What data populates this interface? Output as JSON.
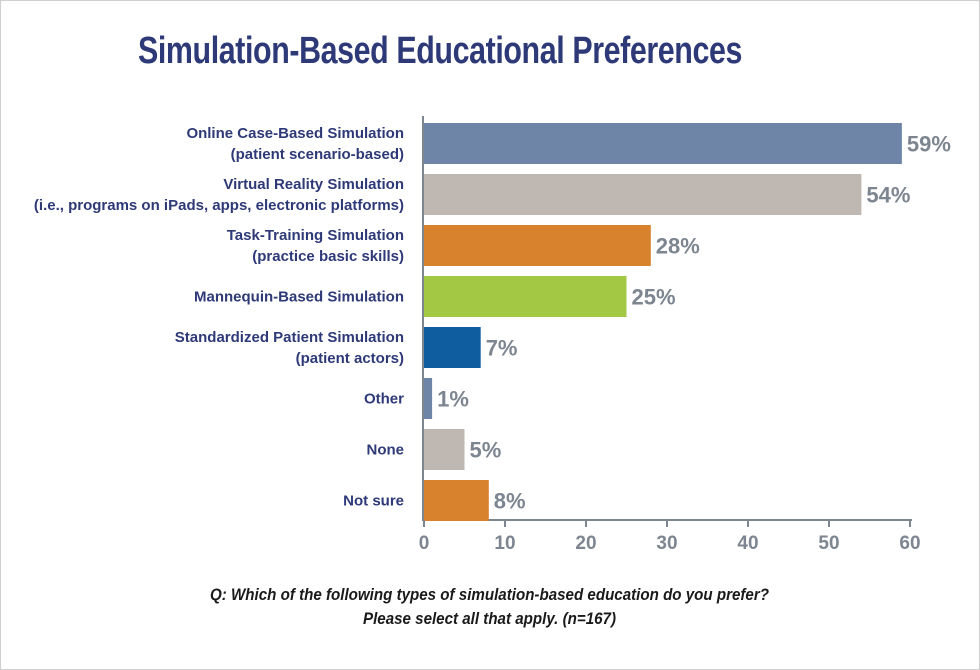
{
  "chart_data": {
    "type": "bar",
    "orientation": "horizontal",
    "title": "Simulation-Based Educational Preferences",
    "categories": [
      [
        "Online Case-Based Simulation",
        "(patient scenario-based)"
      ],
      [
        "Virtual Reality Simulation",
        "(i.e., programs on iPads, apps, electronic platforms)"
      ],
      [
        "Task-Training Simulation",
        "(practice basic skills)"
      ],
      [
        "Mannequin-Based Simulation"
      ],
      [
        "Standardized Patient Simulation",
        "(patient actors)"
      ],
      [
        "Other"
      ],
      [
        "None"
      ],
      [
        "Not sure"
      ]
    ],
    "values": [
      59,
      54,
      28,
      25,
      7,
      1,
      5,
      8
    ],
    "value_labels": [
      "59%",
      "54%",
      "28%",
      "25%",
      "7%",
      "1%",
      "5%",
      "8%"
    ],
    "colors": [
      "#6f85a8",
      "#bfb8b2",
      "#d8822d",
      "#a2c844",
      "#0f5d9f",
      "#6f85a8",
      "#bfb8b2",
      "#d8822d"
    ],
    "xlim": [
      0,
      60
    ],
    "xticks": [
      0,
      10,
      20,
      30,
      40,
      50,
      60
    ],
    "grid": false,
    "axis_color": "#7d8590"
  },
  "question": {
    "line1": "Q:  Which of the following types of simulation-based education do you prefer?",
    "line2": "Please select all that apply.   (n=167)"
  }
}
